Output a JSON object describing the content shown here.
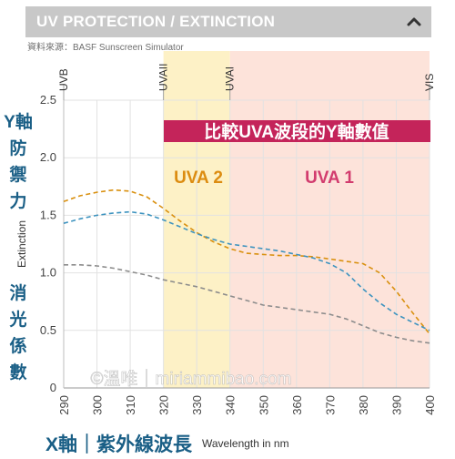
{
  "panel": {
    "title": "UV PROTECTION / EXTINCTION",
    "source": "資料來源：BASF Sunscreen Simulator",
    "collapse_icon": "chevron-up-icon"
  },
  "annotations": {
    "y_axis_cjk": [
      "Y軸",
      "防",
      "禦",
      "力",
      "消",
      "光",
      "係",
      "數"
    ],
    "x_axis_cjk": "X軸｜紫外線波長",
    "banner": "比較UVA波段的Y軸數值",
    "uva2": "UVA 2",
    "uva1": "UVA 1",
    "watermark": "©溫唯｜miriammibao.com"
  },
  "colors": {
    "uva2_band": "#fdf1c6",
    "uva1_band": "#fde3da",
    "banner": "#c4245a",
    "uva2_text": "#dc8c10",
    "uva1_text": "#d23c6e",
    "orange_series": "#d9900f",
    "blue_series": "#3d93bf",
    "gray_series": "#8c8c8c",
    "cjk_text": "#1a5f86"
  },
  "chart_data": {
    "type": "line",
    "ylabel": "Extinction",
    "xlabel": "Wavelength in nm",
    "xlim": [
      290,
      400
    ],
    "ylim": [
      0,
      2.5
    ],
    "xticks": [
      "290",
      "300",
      "310",
      "320",
      "330",
      "340",
      "350",
      "360",
      "370",
      "380",
      "390",
      "400"
    ],
    "yticks": [
      "0",
      "0.5",
      "1.0",
      "1.5",
      "2.0",
      "2.5"
    ],
    "grid": true,
    "bands": [
      {
        "name": "UVB",
        "start": 290
      },
      {
        "name": "UVAII",
        "start": 320
      },
      {
        "name": "UVAI",
        "start": 340
      },
      {
        "name": "VIS",
        "start": 400
      }
    ],
    "band_ranges": {
      "uva2": [
        320,
        340
      ],
      "uva1": [
        340,
        400
      ]
    },
    "series": [
      {
        "color": "#d9900f",
        "x": [
          290,
          295,
          300,
          305,
          310,
          315,
          320,
          325,
          330,
          335,
          340,
          345,
          350,
          355,
          360,
          365,
          370,
          375,
          380,
          385,
          390,
          395,
          400
        ],
        "y": [
          1.62,
          1.67,
          1.7,
          1.72,
          1.71,
          1.66,
          1.56,
          1.45,
          1.35,
          1.27,
          1.21,
          1.17,
          1.16,
          1.15,
          1.15,
          1.14,
          1.12,
          1.1,
          1.08,
          1.0,
          0.84,
          0.65,
          0.47
        ]
      },
      {
        "color": "#3d93bf",
        "x": [
          290,
          295,
          300,
          305,
          310,
          315,
          320,
          325,
          330,
          335,
          340,
          345,
          350,
          355,
          360,
          365,
          370,
          375,
          380,
          385,
          390,
          395,
          400
        ],
        "y": [
          1.43,
          1.47,
          1.5,
          1.52,
          1.53,
          1.51,
          1.46,
          1.4,
          1.34,
          1.29,
          1.25,
          1.23,
          1.21,
          1.19,
          1.16,
          1.13,
          1.08,
          1.0,
          0.86,
          0.74,
          0.64,
          0.57,
          0.5
        ]
      },
      {
        "color": "#8c8c8c",
        "x": [
          290,
          295,
          300,
          305,
          310,
          315,
          320,
          325,
          330,
          335,
          340,
          345,
          350,
          355,
          360,
          365,
          370,
          375,
          380,
          385,
          390,
          395,
          400
        ],
        "y": [
          1.07,
          1.07,
          1.06,
          1.04,
          1.01,
          0.98,
          0.94,
          0.91,
          0.88,
          0.84,
          0.8,
          0.76,
          0.72,
          0.7,
          0.68,
          0.66,
          0.64,
          0.6,
          0.54,
          0.48,
          0.44,
          0.41,
          0.39
        ]
      }
    ]
  }
}
